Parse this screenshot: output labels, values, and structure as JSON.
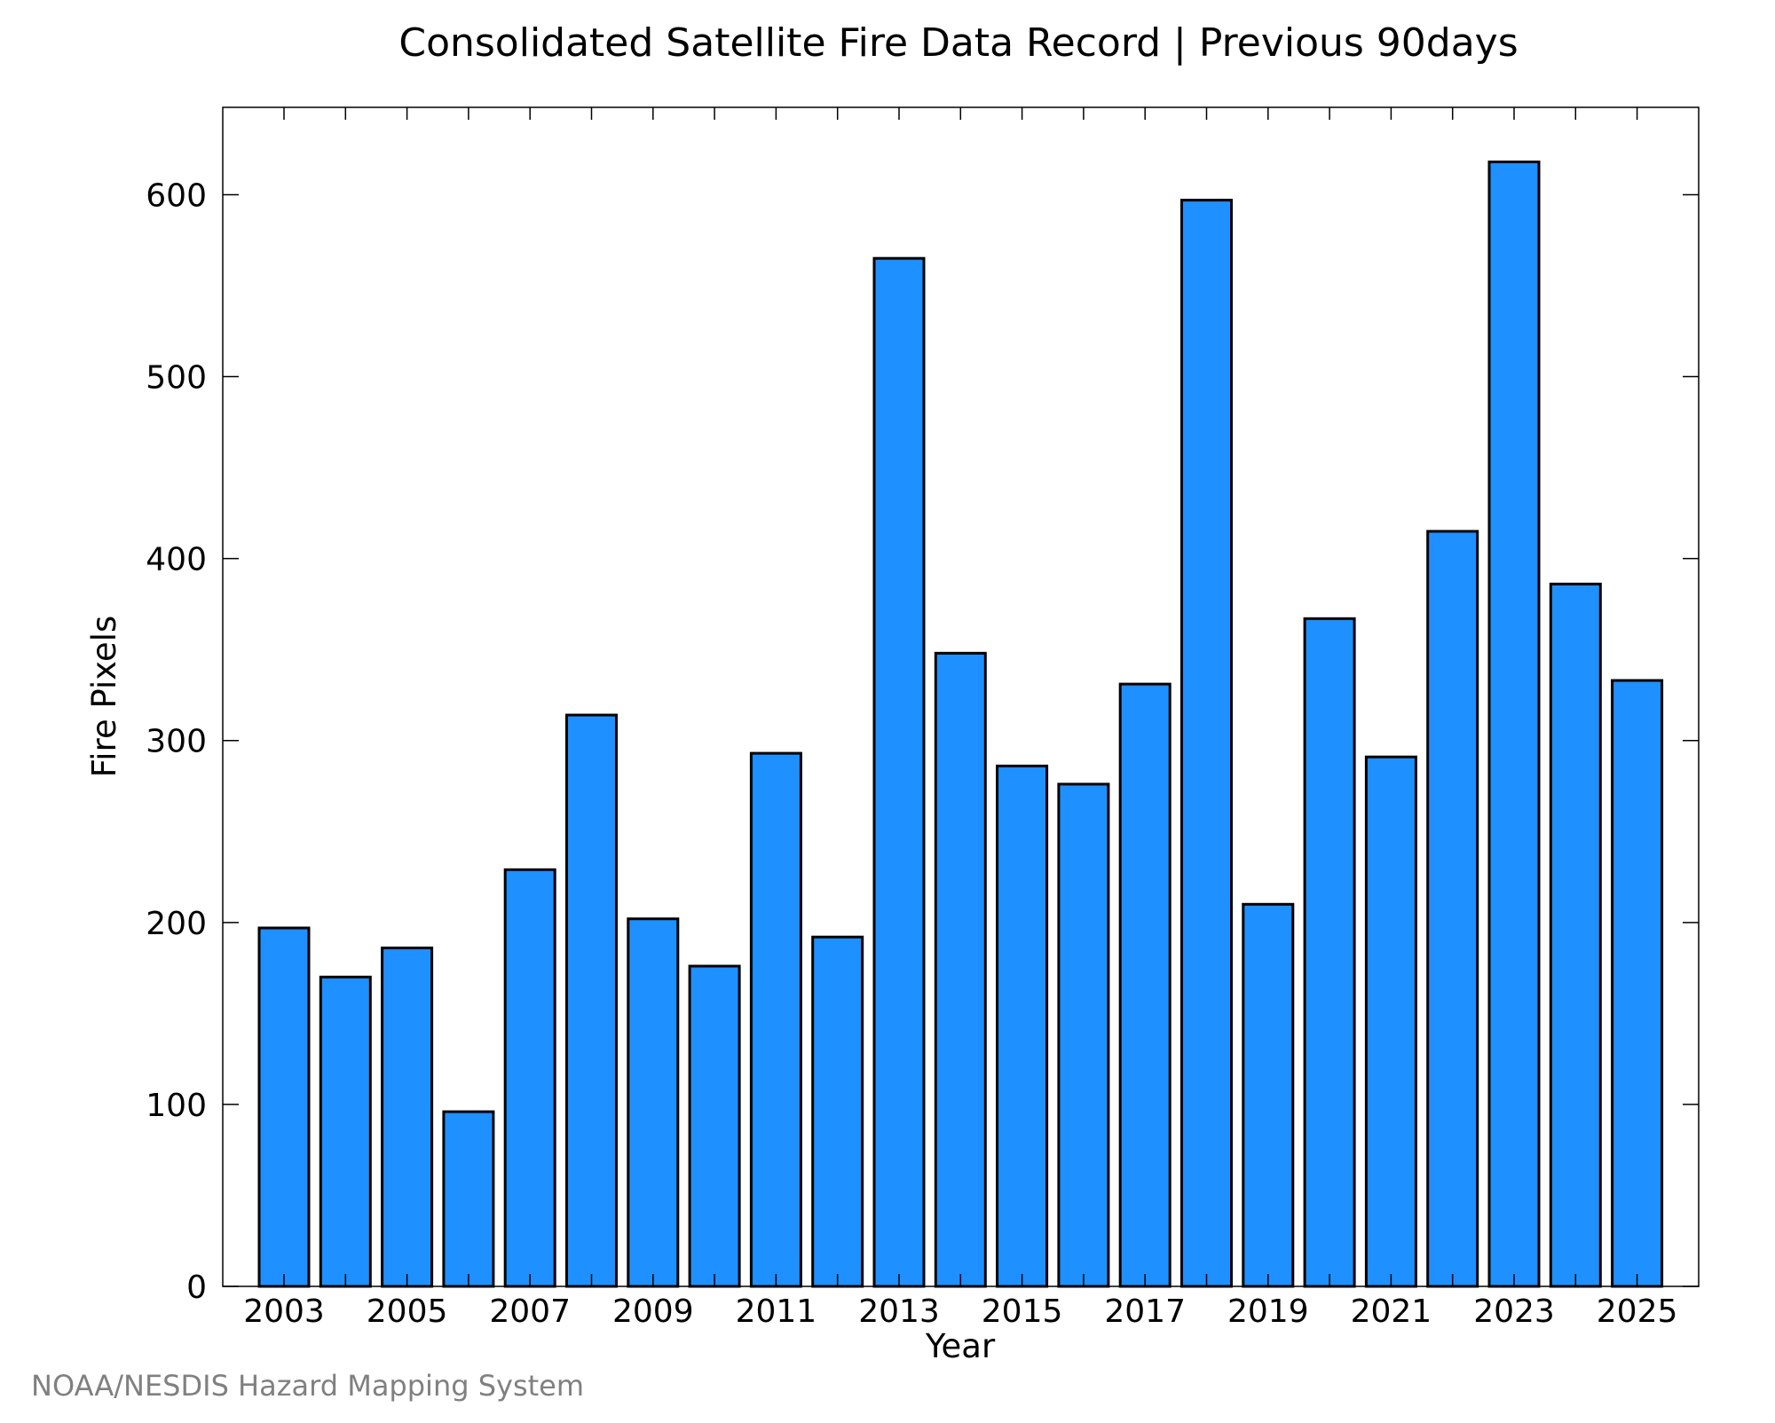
{
  "chart_data": {
    "type": "bar",
    "title": "Consolidated Satellite Fire Data Record | Previous 90days",
    "xlabel": "Year",
    "ylabel": "Fire Pixels",
    "categories": [
      "2003",
      "2004",
      "2005",
      "2006",
      "2007",
      "2008",
      "2009",
      "2010",
      "2011",
      "2012",
      "2013",
      "2014",
      "2015",
      "2016",
      "2017",
      "2018",
      "2019",
      "2020",
      "2021",
      "2022",
      "2023",
      "2024",
      "2025"
    ],
    "values": [
      197,
      170,
      186,
      96,
      229,
      314,
      202,
      176,
      293,
      192,
      565,
      348,
      286,
      276,
      331,
      597,
      210,
      367,
      291,
      415,
      618,
      386,
      333
    ],
    "x_tick_labels": [
      "2003",
      "2005",
      "2007",
      "2009",
      "2011",
      "2013",
      "2015",
      "2017",
      "2019",
      "2021",
      "2023",
      "2025"
    ],
    "y_ticks": [
      0,
      100,
      200,
      300,
      400,
      500,
      600
    ],
    "ylim": [
      0,
      648
    ],
    "grid": false,
    "bar_color": "#1e90ff",
    "bar_edge_color": "#000000"
  },
  "footer": {
    "credit": "NOAA/NESDIS Hazard Mapping System"
  }
}
